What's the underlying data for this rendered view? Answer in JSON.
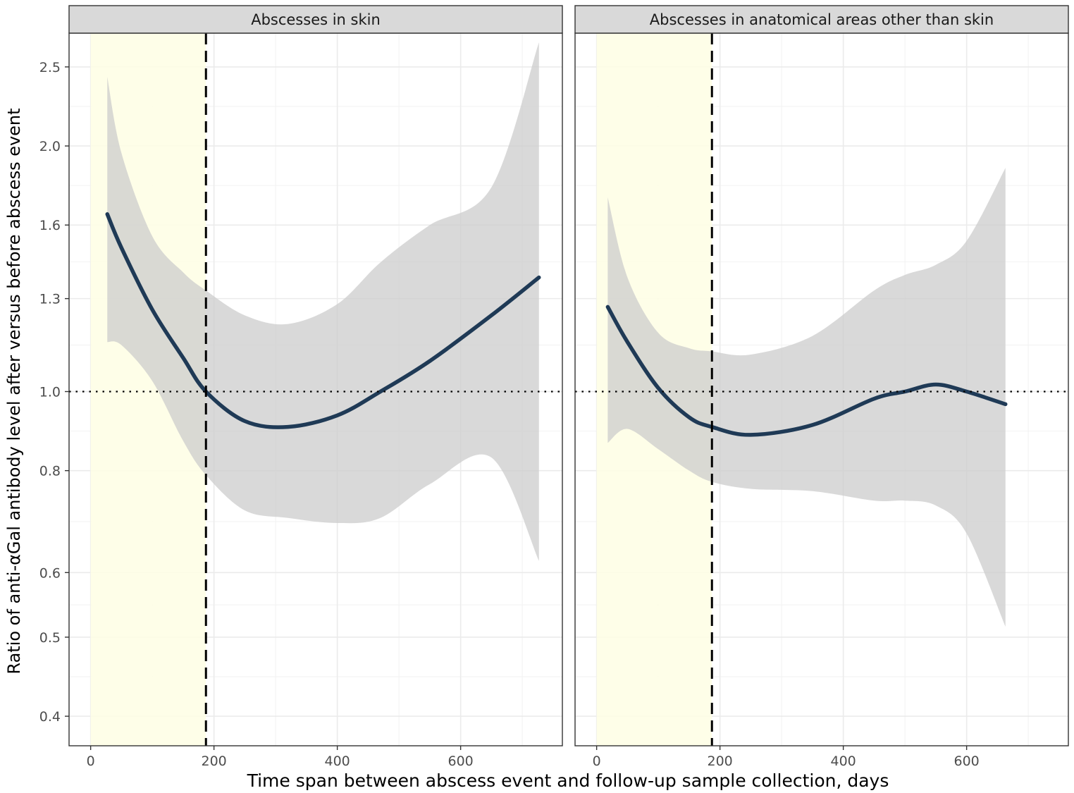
{
  "chart_data": {
    "type": "line",
    "y_scale": "log",
    "ylabel": "Ratio of anti-αGal antibody level after versus before abscess event",
    "xlabel": "Time span between abscess event and follow-up sample collection, days",
    "xlim": [
      -35,
      765
    ],
    "ylim": [
      0.368,
      2.75
    ],
    "x_ticks": [
      0,
      200,
      400,
      600
    ],
    "x_tick_labels": [
      "0",
      "200",
      "400",
      "600"
    ],
    "y_ticks": [
      0.4,
      0.5,
      0.6,
      0.8,
      1.0,
      1.3,
      1.6,
      2.0,
      2.5
    ],
    "y_tick_labels": [
      "0.4",
      "0.5",
      "0.6",
      "0.8",
      "1.0",
      "1.3",
      "1.6",
      "2.0",
      "2.5"
    ],
    "x_minor_ticks": [
      100,
      300,
      500,
      700
    ],
    "reference_line_y": 1.0,
    "vline_x": 187,
    "highlight_range": [
      0,
      187
    ],
    "grid": true,
    "colors": {
      "line": "#1f3a56",
      "ribbon": "#cccccc",
      "highlight": "#fefee6",
      "strip": "#d9d9d9"
    },
    "panels": [
      {
        "title": "Abscesses in skin",
        "series": [
          {
            "x": [
              27,
              50,
              100,
              150,
              187,
              250,
              320,
              400,
              470,
              550,
              650,
              727
            ],
            "y": [
              1.65,
              1.5,
              1.26,
              1.1,
              1.0,
              0.92,
              0.905,
              0.935,
              1.0,
              1.09,
              1.24,
              1.38
            ],
            "lower": [
              1.15,
              1.14,
              1.03,
              0.87,
              0.79,
              0.715,
              0.7,
              0.69,
              0.7,
              0.77,
              0.83,
              0.62
            ],
            "upper": [
              2.43,
              1.96,
              1.55,
              1.4,
              1.33,
              1.24,
              1.21,
              1.28,
              1.44,
              1.6,
              1.78,
              2.68
            ]
          }
        ]
      },
      {
        "title": "Abscesses in anatomical areas other than skin",
        "series": [
          {
            "x": [
              18,
              50,
              100,
              150,
              187,
              250,
              350,
              450,
              500,
              550,
              600,
              663
            ],
            "y": [
              1.27,
              1.15,
              1.01,
              0.93,
              0.905,
              0.885,
              0.91,
              0.98,
              1.0,
              1.02,
              1.0,
              0.965
            ],
            "lower": [
              0.865,
              0.9,
              0.85,
              0.8,
              0.775,
              0.76,
              0.755,
              0.735,
              0.735,
              0.725,
              0.67,
              0.515
            ],
            "upper": [
              1.73,
              1.38,
              1.18,
              1.13,
              1.12,
              1.11,
              1.17,
              1.33,
              1.39,
              1.43,
              1.53,
              1.88
            ]
          }
        ]
      }
    ]
  }
}
